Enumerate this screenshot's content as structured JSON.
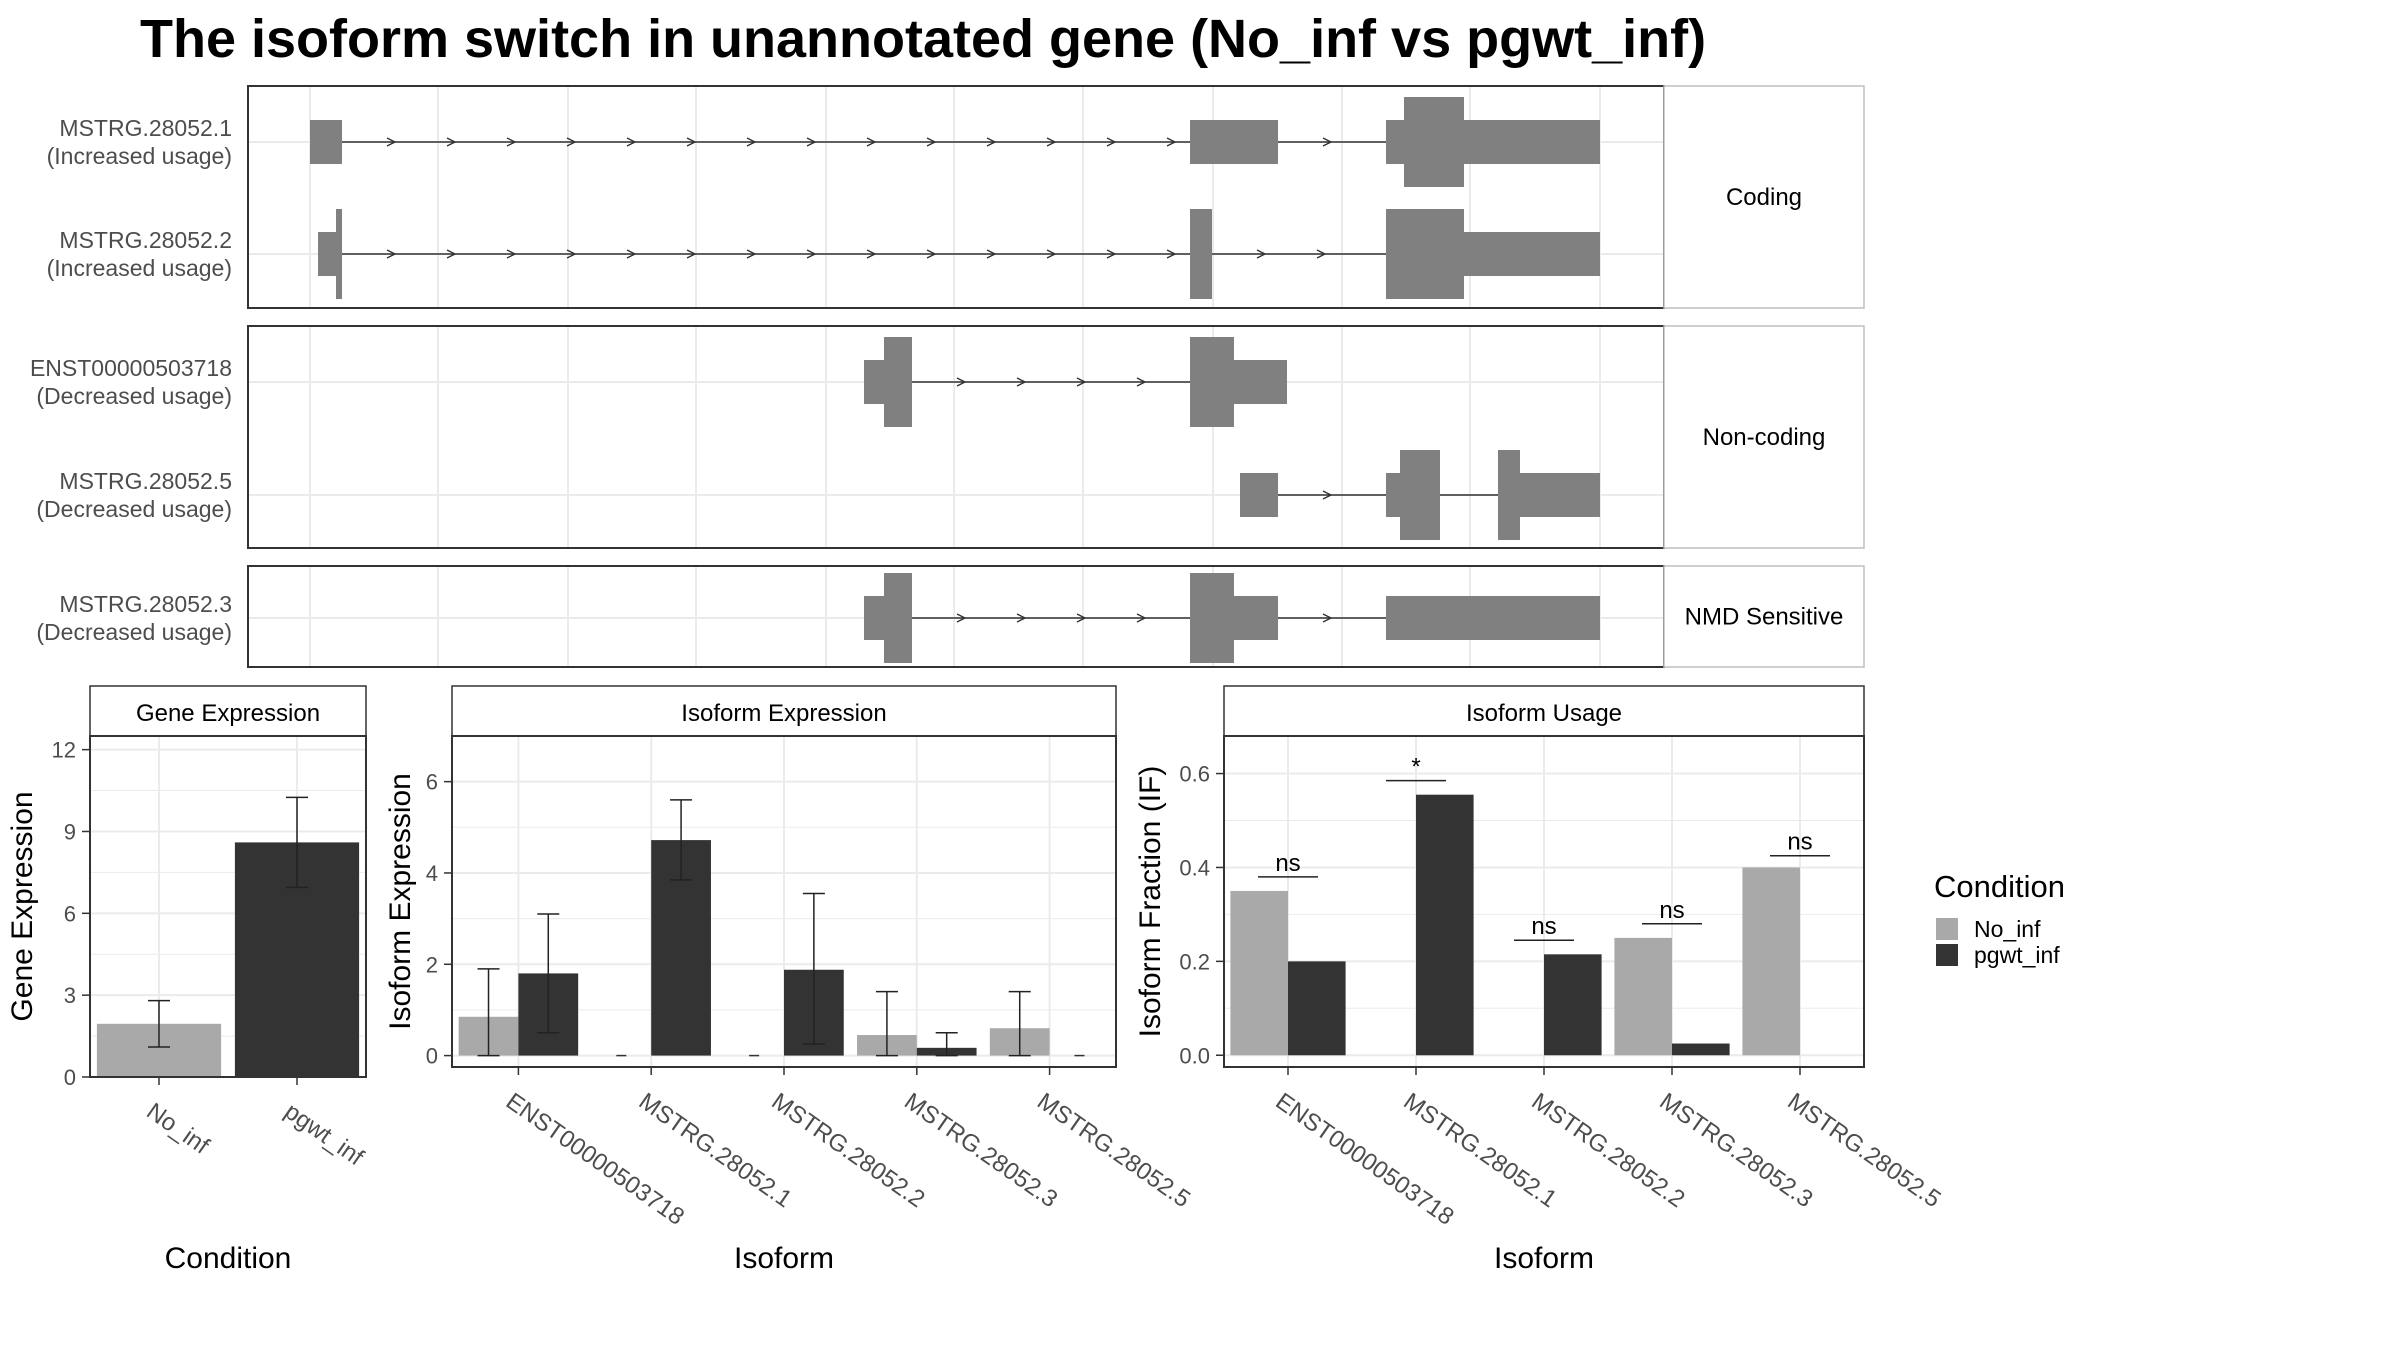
{
  "title": "The isoform switch in unannotated gene (No_inf vs pgwt_inf)",
  "colors": {
    "no_inf": "#a9a9a9",
    "pgwt_inf": "#333333",
    "exon": "#808080",
    "grid": "#ebebeb",
    "panel_border": "#333333",
    "strip_border": "#bfbfbf"
  },
  "structure": {
    "type": "transcript-structure",
    "panels": [
      {
        "category": "Coding",
        "isoforms": [
          {
            "id": "MSTRG.28052.1",
            "usage": "(Increased usage)"
          },
          {
            "id": "MSTRG.28052.2",
            "usage": "(Increased usage)"
          }
        ]
      },
      {
        "category": "Non-coding",
        "isoforms": [
          {
            "id": "ENST00000503718",
            "usage": "(Decreased usage)"
          },
          {
            "id": "MSTRG.28052.5",
            "usage": "(Decreased usage)"
          }
        ]
      },
      {
        "category": "NMD Sensitive",
        "isoforms": [
          {
            "id": "MSTRG.28052.3",
            "usage": "(Decreased usage)"
          }
        ]
      }
    ]
  },
  "chart_data": [
    {
      "type": "bar",
      "title": "Gene Expression",
      "xlabel": "Condition",
      "ylabel": "Gene Expression",
      "ylim": [
        0,
        12.5
      ],
      "yticks": [
        0,
        3,
        6,
        9,
        12
      ],
      "categories": [
        "No_inf",
        "pgwt_inf"
      ],
      "values": [
        1.95,
        8.6
      ],
      "err_low": [
        1.1,
        6.95
      ],
      "err_high": [
        2.8,
        10.25
      ]
    },
    {
      "type": "bar",
      "title": "Isoform Expression",
      "xlabel": "Isoform",
      "ylabel": "Isoform Expression",
      "ylim": [
        -0.25,
        7
      ],
      "yticks": [
        0,
        2,
        4,
        6
      ],
      "categories": [
        "ENST00000503718",
        "MSTRG.28052.1",
        "MSTRG.28052.2",
        "MSTRG.28052.3",
        "MSTRG.28052.5"
      ],
      "series": [
        {
          "name": "No_inf",
          "values": [
            0.85,
            0,
            0,
            0.45,
            0.6
          ],
          "err_low": [
            0,
            0,
            0,
            0,
            0
          ],
          "err_high": [
            1.9,
            0,
            0,
            1.4,
            1.4
          ]
        },
        {
          "name": "pgwt_inf",
          "values": [
            1.8,
            4.72,
            1.88,
            0.17,
            0
          ],
          "err_low": [
            0.5,
            3.85,
            0.25,
            0,
            0
          ],
          "err_high": [
            3.1,
            5.6,
            3.55,
            0.5,
            0
          ]
        }
      ]
    },
    {
      "type": "bar",
      "title": "Isoform Usage",
      "xlabel": "Isoform",
      "ylabel": "Isoform Fraction (IF)",
      "ylim": [
        -0.025,
        0.68
      ],
      "yticks": [
        "0.0",
        "0.2",
        "0.4",
        "0.6"
      ],
      "categories": [
        "ENST00000503718",
        "MSTRG.28052.1",
        "MSTRG.28052.2",
        "MSTRG.28052.3",
        "MSTRG.28052.5"
      ],
      "series": [
        {
          "name": "No_inf",
          "values": [
            0.35,
            0,
            0,
            0.25,
            0.4
          ]
        },
        {
          "name": "pgwt_inf",
          "values": [
            0.2,
            0.555,
            0.215,
            0.025,
            0
          ]
        }
      ],
      "significance": [
        "ns",
        "*",
        "ns",
        "ns",
        "ns"
      ],
      "sig_level": [
        0.38,
        0.585,
        0.245,
        0.28,
        0.425
      ]
    }
  ],
  "legend": {
    "title": "Condition",
    "items": [
      "No_inf",
      "pgwt_inf"
    ]
  }
}
